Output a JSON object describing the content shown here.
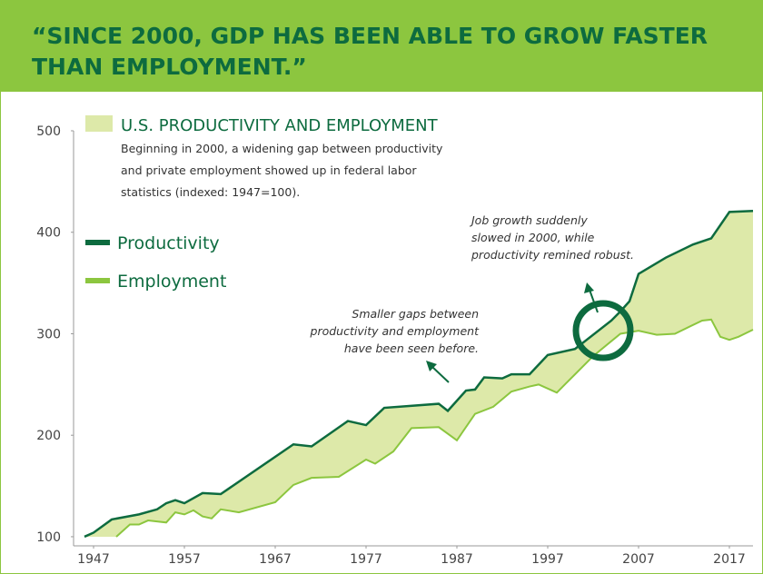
{
  "header": {
    "title": "“SINCE 2000, GDP HAS BEEN ABLE TO GROW FASTER THAN EMPLOYMENT.”"
  },
  "chart_data": {
    "type": "line",
    "title": "U.S. PRODUCTIVITY AND EMPLOYMENT",
    "subtitle": [
      "Beginning in 2000, a widening gap between productivity",
      "and private employment showed up in federal labor",
      "statistics (indexed: 1947=100)."
    ],
    "area_color": "#dde9a9",
    "series": [
      {
        "name": "Productivity",
        "color": "#0d6b3f",
        "x": [
          1946,
          1947,
          1949,
          1952,
          1954,
          1955,
          1956,
          1957,
          1959,
          1961,
          1969,
          1971,
          1975,
          1977,
          1979,
          1985,
          1986,
          1988,
          1989,
          1990,
          1992,
          1993,
          1995,
          1997,
          2000,
          2004,
          2005,
          2006,
          2007,
          2010,
          2013,
          2015,
          2017,
          2019.6
        ],
        "values": [
          100,
          104,
          117,
          122,
          127,
          133,
          136,
          133,
          143,
          142,
          191,
          189,
          214,
          210,
          227,
          231,
          224,
          244,
          245,
          257,
          256,
          260,
          260,
          279,
          285,
          313,
          322,
          332,
          359,
          375,
          388,
          394,
          420,
          421
        ]
      },
      {
        "name": "Employment",
        "color": "#8cc63f",
        "x": [
          1949.5,
          1951,
          1952,
          1953,
          1955,
          1956,
          1957,
          1958,
          1959,
          1960,
          1961,
          1963,
          1967,
          1969,
          1971,
          1974,
          1977,
          1978,
          1980,
          1982,
          1985,
          1987,
          1989,
          1991,
          1993,
          1995,
          1996,
          1998,
          1999,
          2002,
          2005,
          2007,
          2009,
          2011,
          2014,
          2015,
          2016,
          2017,
          2018,
          2019.6
        ],
        "values": [
          100,
          112,
          112,
          116,
          114,
          124,
          122,
          126,
          120,
          118,
          127,
          124,
          134,
          151,
          158,
          159,
          176,
          172,
          184,
          207,
          208,
          195,
          221,
          228,
          243,
          248,
          250,
          242,
          251,
          278,
          300,
          303,
          299,
          300,
          313,
          314,
          297,
          294,
          297,
          304
        ]
      }
    ],
    "xlim": [
      1944.8,
      2019.6
    ],
    "xticks": [
      1947,
      1957,
      1967,
      1977,
      1987,
      1997,
      2007,
      2017
    ],
    "ylim": [
      91,
      500
    ],
    "yticks": [
      100,
      200,
      300,
      400,
      500
    ],
    "annotations": [
      {
        "lines": [
          "Job growth suddenly",
          "slowed in 2000, while",
          "productivity remined robust."
        ]
      },
      {
        "lines": [
          "Smaller gaps between",
          "productivity and employment",
          "have been seen before."
        ]
      }
    ]
  }
}
